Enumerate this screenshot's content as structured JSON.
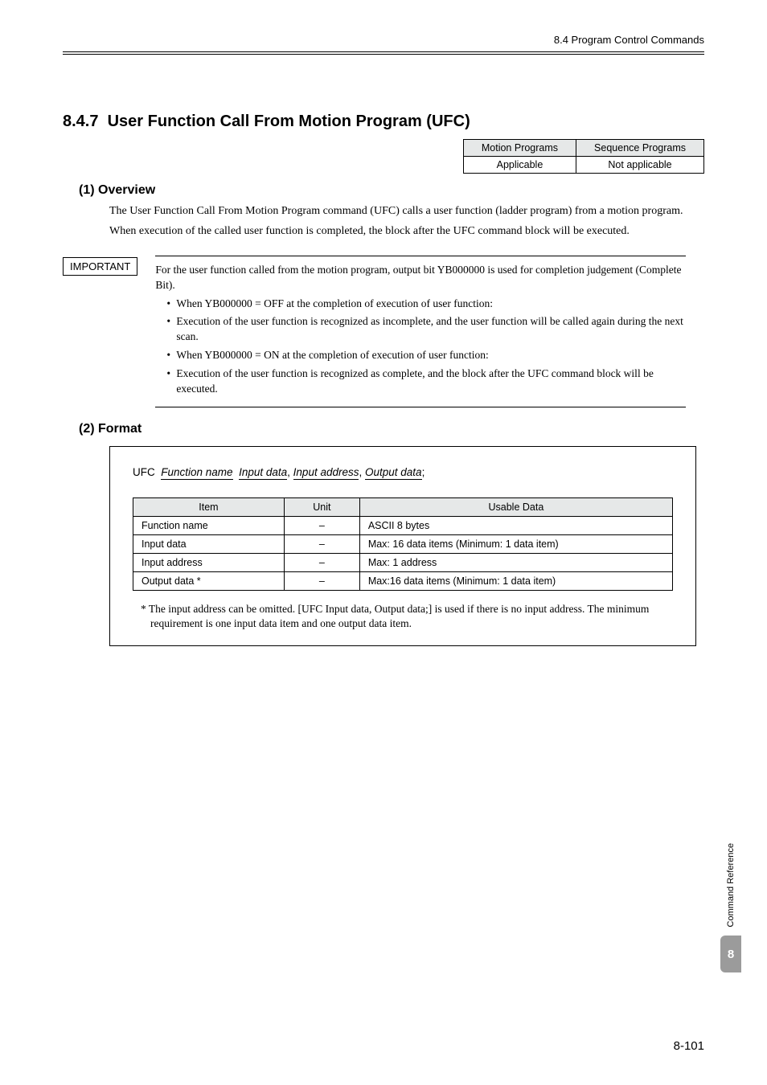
{
  "header": {
    "right": "8.4  Program Control Commands"
  },
  "section": {
    "number": "8.4.7",
    "title": "User Function Call From Motion Program (UFC)"
  },
  "applicability": {
    "headers": [
      "Motion Programs",
      "Sequence Programs"
    ],
    "values": [
      "Applicable",
      "Not applicable"
    ],
    "header_bg": "#e6e8e8"
  },
  "overview": {
    "heading": "(1) Overview",
    "para1": "The User Function Call From Motion Program command (UFC) calls a user function (ladder program) from a motion program.",
    "para2": "When execution of the called user function is completed, the block after the UFC command block will be executed."
  },
  "important": {
    "label": "IMPORTANT",
    "intro": "For the user function called from the motion program, output bit YB000000 is used for completion judgement (Complete Bit).",
    "bullets": [
      "When YB000000 = OFF at the completion of execution of user function:",
      "Execution of the user function is recognized as incomplete, and the user function will be called again during the next scan.",
      "When YB000000 = ON at the completion of execution of user function:",
      "Execution of the user function is recognized as complete, and the block after the UFC command block will be executed."
    ]
  },
  "format": {
    "heading": "(2) Format",
    "syntax": {
      "cmd": "UFC",
      "p1": "Function name",
      "p2": "Input data",
      "p3": "Input address",
      "p4": "Output data"
    },
    "table": {
      "columns": [
        "Item",
        "Unit",
        "Usable Data"
      ],
      "col_widths": [
        "28%",
        "14%",
        "58%"
      ],
      "rows": [
        [
          "Function name",
          "–",
          "ASCII 8 bytes"
        ],
        [
          "Input data",
          "–",
          "Max: 16 data items (Minimum: 1 data item)"
        ],
        [
          "Input address",
          "–",
          "Max: 1 address"
        ],
        [
          "Output data *",
          "–",
          "Max:16 data items (Minimum: 1 data item)"
        ]
      ]
    },
    "footnote": "*  The input address can be omitted. [UFC Input data, Output data;] is used if there is no input address. The minimum requirement is one input data item and one output data item."
  },
  "sidebar": {
    "text": "Command Reference",
    "num": "8",
    "bg": "#9b9b9b"
  },
  "pagenum": "8-101"
}
